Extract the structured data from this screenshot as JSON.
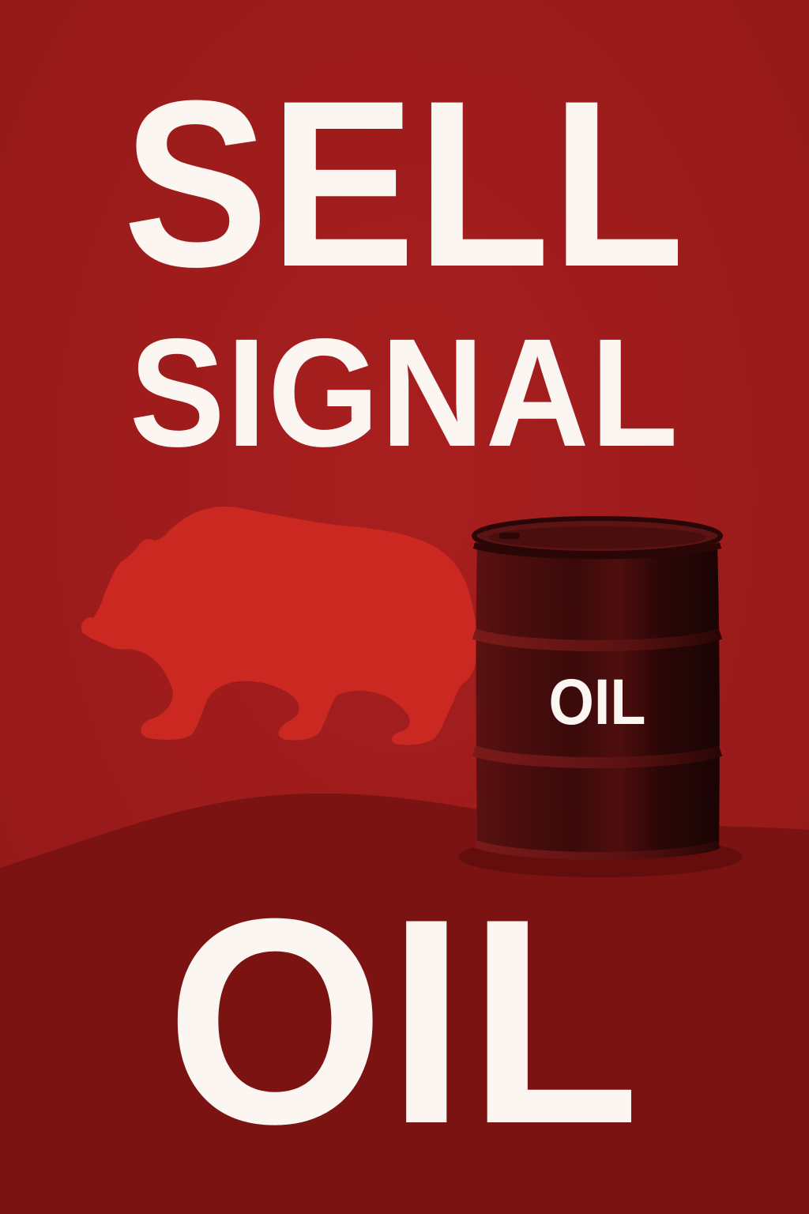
{
  "poster": {
    "headline_line1": "SELL",
    "headline_line2": "SIGNAL",
    "barrel_label": "OIL",
    "bottom_word": "OIL"
  },
  "colors": {
    "background": "#9e1b1b",
    "hill": "#7a1212",
    "bear": "#d02a24",
    "barrel": "#3a0a0a",
    "text": "#fbf6f2"
  },
  "icons": {
    "animal": "bear-silhouette",
    "object": "oil-barrel"
  }
}
